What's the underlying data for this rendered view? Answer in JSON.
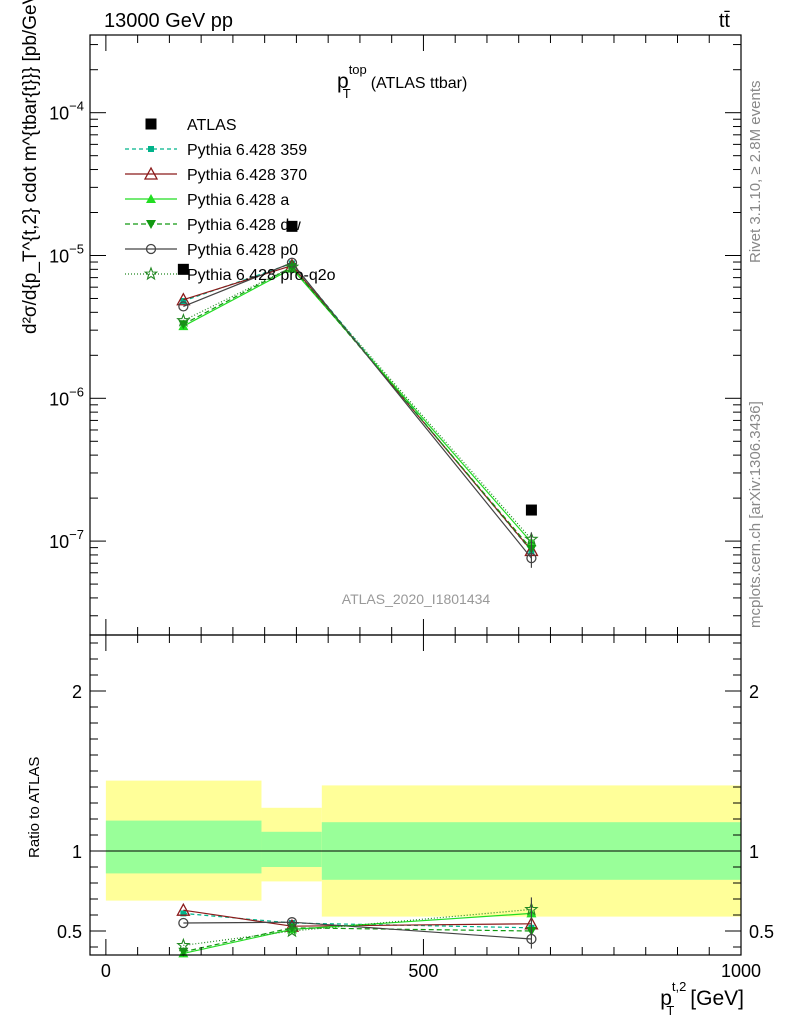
{
  "header": {
    "energy_label": "13000 GeV pp",
    "process_label": "tt̄"
  },
  "side_labels": {
    "rivet": "Rivet 3.1.10, ≥ 2.8M events",
    "mcplots": "mcplots.cern.ch [arXiv:1306.3436]"
  },
  "chart_data": [
    {
      "type": "line",
      "panel": "main",
      "title_main": "p",
      "title_sup": "top",
      "title_sub": "T",
      "title_tail": "(ATLAS ttbar)",
      "analysis_id": "ATLAS_2020_I1801434",
      "ylabel": "d²σ/d{p_T^{t,2} cdot m^{tbar{t}}} [pb/GeV²]",
      "yscale": "log",
      "ylim": [
        2.2e-08,
        0.00035
      ],
      "xlim": [
        -25,
        1000
      ],
      "yticks": [
        {
          "value": 1e-07,
          "base": "10",
          "exp": "−7"
        },
        {
          "value": 1e-06,
          "base": "10",
          "exp": "−6"
        },
        {
          "value": 1e-05,
          "base": "10",
          "exp": "−5"
        },
        {
          "value": 0.0001,
          "base": "10",
          "exp": "−4"
        }
      ],
      "x": [
        122,
        293,
        670
      ],
      "series": [
        {
          "name": "ATLAS",
          "color": "#000000",
          "marker": "square",
          "dash": "none",
          "values": [
            8e-06,
            1.6e-05,
            1.65e-07
          ]
        },
        {
          "name": "Pythia 6.428 359",
          "color": "#00b38a",
          "marker": "smallsquare",
          "dash": "4,3",
          "values": [
            4.8e-06,
            8.8e-06,
            8.5e-08
          ]
        },
        {
          "name": "Pythia 6.428 370",
          "color": "#8b1a1a",
          "marker": "triangle-open",
          "dash": "none",
          "values": [
            4.9e-06,
            8.5e-06,
            8.6e-08
          ]
        },
        {
          "name": "Pythia 6.428 a",
          "color": "#22dd22",
          "marker": "triangle",
          "dash": "none",
          "values": [
            3.2e-06,
            8.1e-06,
            9.8e-08
          ]
        },
        {
          "name": "Pythia 6.428 dw",
          "color": "#119911",
          "marker": "triangle-down",
          "dash": "5,3",
          "values": [
            3.3e-06,
            8.3e-06,
            8.8e-08
          ]
        },
        {
          "name": "Pythia 6.428 p0",
          "color": "#444444",
          "marker": "circle-open",
          "dash": "none",
          "values": [
            4.4e-06,
            8.9e-06,
            7.6e-08
          ]
        },
        {
          "name": "Pythia 6.428 pro-q2o",
          "color": "#228822",
          "marker": "star",
          "dash": "1,2",
          "values": [
            3.5e-06,
            8.3e-06,
            1.03e-07
          ]
        }
      ]
    },
    {
      "type": "line",
      "panel": "ratio",
      "ylabel": "Ratio to ATLAS",
      "xlabel": "p_T^{t,2} [GeV]",
      "xlabel_main": "p",
      "xlabel_sup": "t,2",
      "xlabel_sub": "T",
      "xlabel_tail": "[GeV]",
      "ylim": [
        0.35,
        2.35
      ],
      "yticks": [
        0.5,
        1,
        2
      ],
      "yticklabels": [
        "0.5",
        "1",
        "2"
      ],
      "xticks": [
        0,
        500,
        1000
      ],
      "xticklabels": [
        "0",
        "500",
        "1000"
      ],
      "bins": [
        {
          "lo": 0,
          "hi": 245,
          "stat": [
            0.86,
            1.19
          ],
          "total": [
            0.69,
            1.44
          ]
        },
        {
          "lo": 245,
          "hi": 340,
          "stat": [
            0.9,
            1.12
          ],
          "total": [
            0.81,
            1.27
          ]
        },
        {
          "lo": 340,
          "hi": 1000,
          "stat": [
            0.82,
            1.18
          ],
          "total": [
            0.59,
            1.41
          ]
        }
      ],
      "x": [
        122,
        293,
        670
      ],
      "series": [
        {
          "name": "Pythia 6.428 359",
          "values": [
            0.61,
            0.55,
            0.52
          ]
        },
        {
          "name": "Pythia 6.428 370",
          "values": [
            0.63,
            0.53,
            0.545
          ]
        },
        {
          "name": "Pythia 6.428 a",
          "values": [
            0.36,
            0.51,
            0.61
          ]
        },
        {
          "name": "Pythia 6.428 dw",
          "values": [
            0.37,
            0.52,
            0.5
          ]
        },
        {
          "name": "Pythia 6.428 p0",
          "values": [
            0.55,
            0.555,
            0.45
          ]
        },
        {
          "name": "Pythia 6.428 pro-q2o",
          "values": [
            0.41,
            0.5,
            0.635
          ]
        }
      ]
    }
  ]
}
